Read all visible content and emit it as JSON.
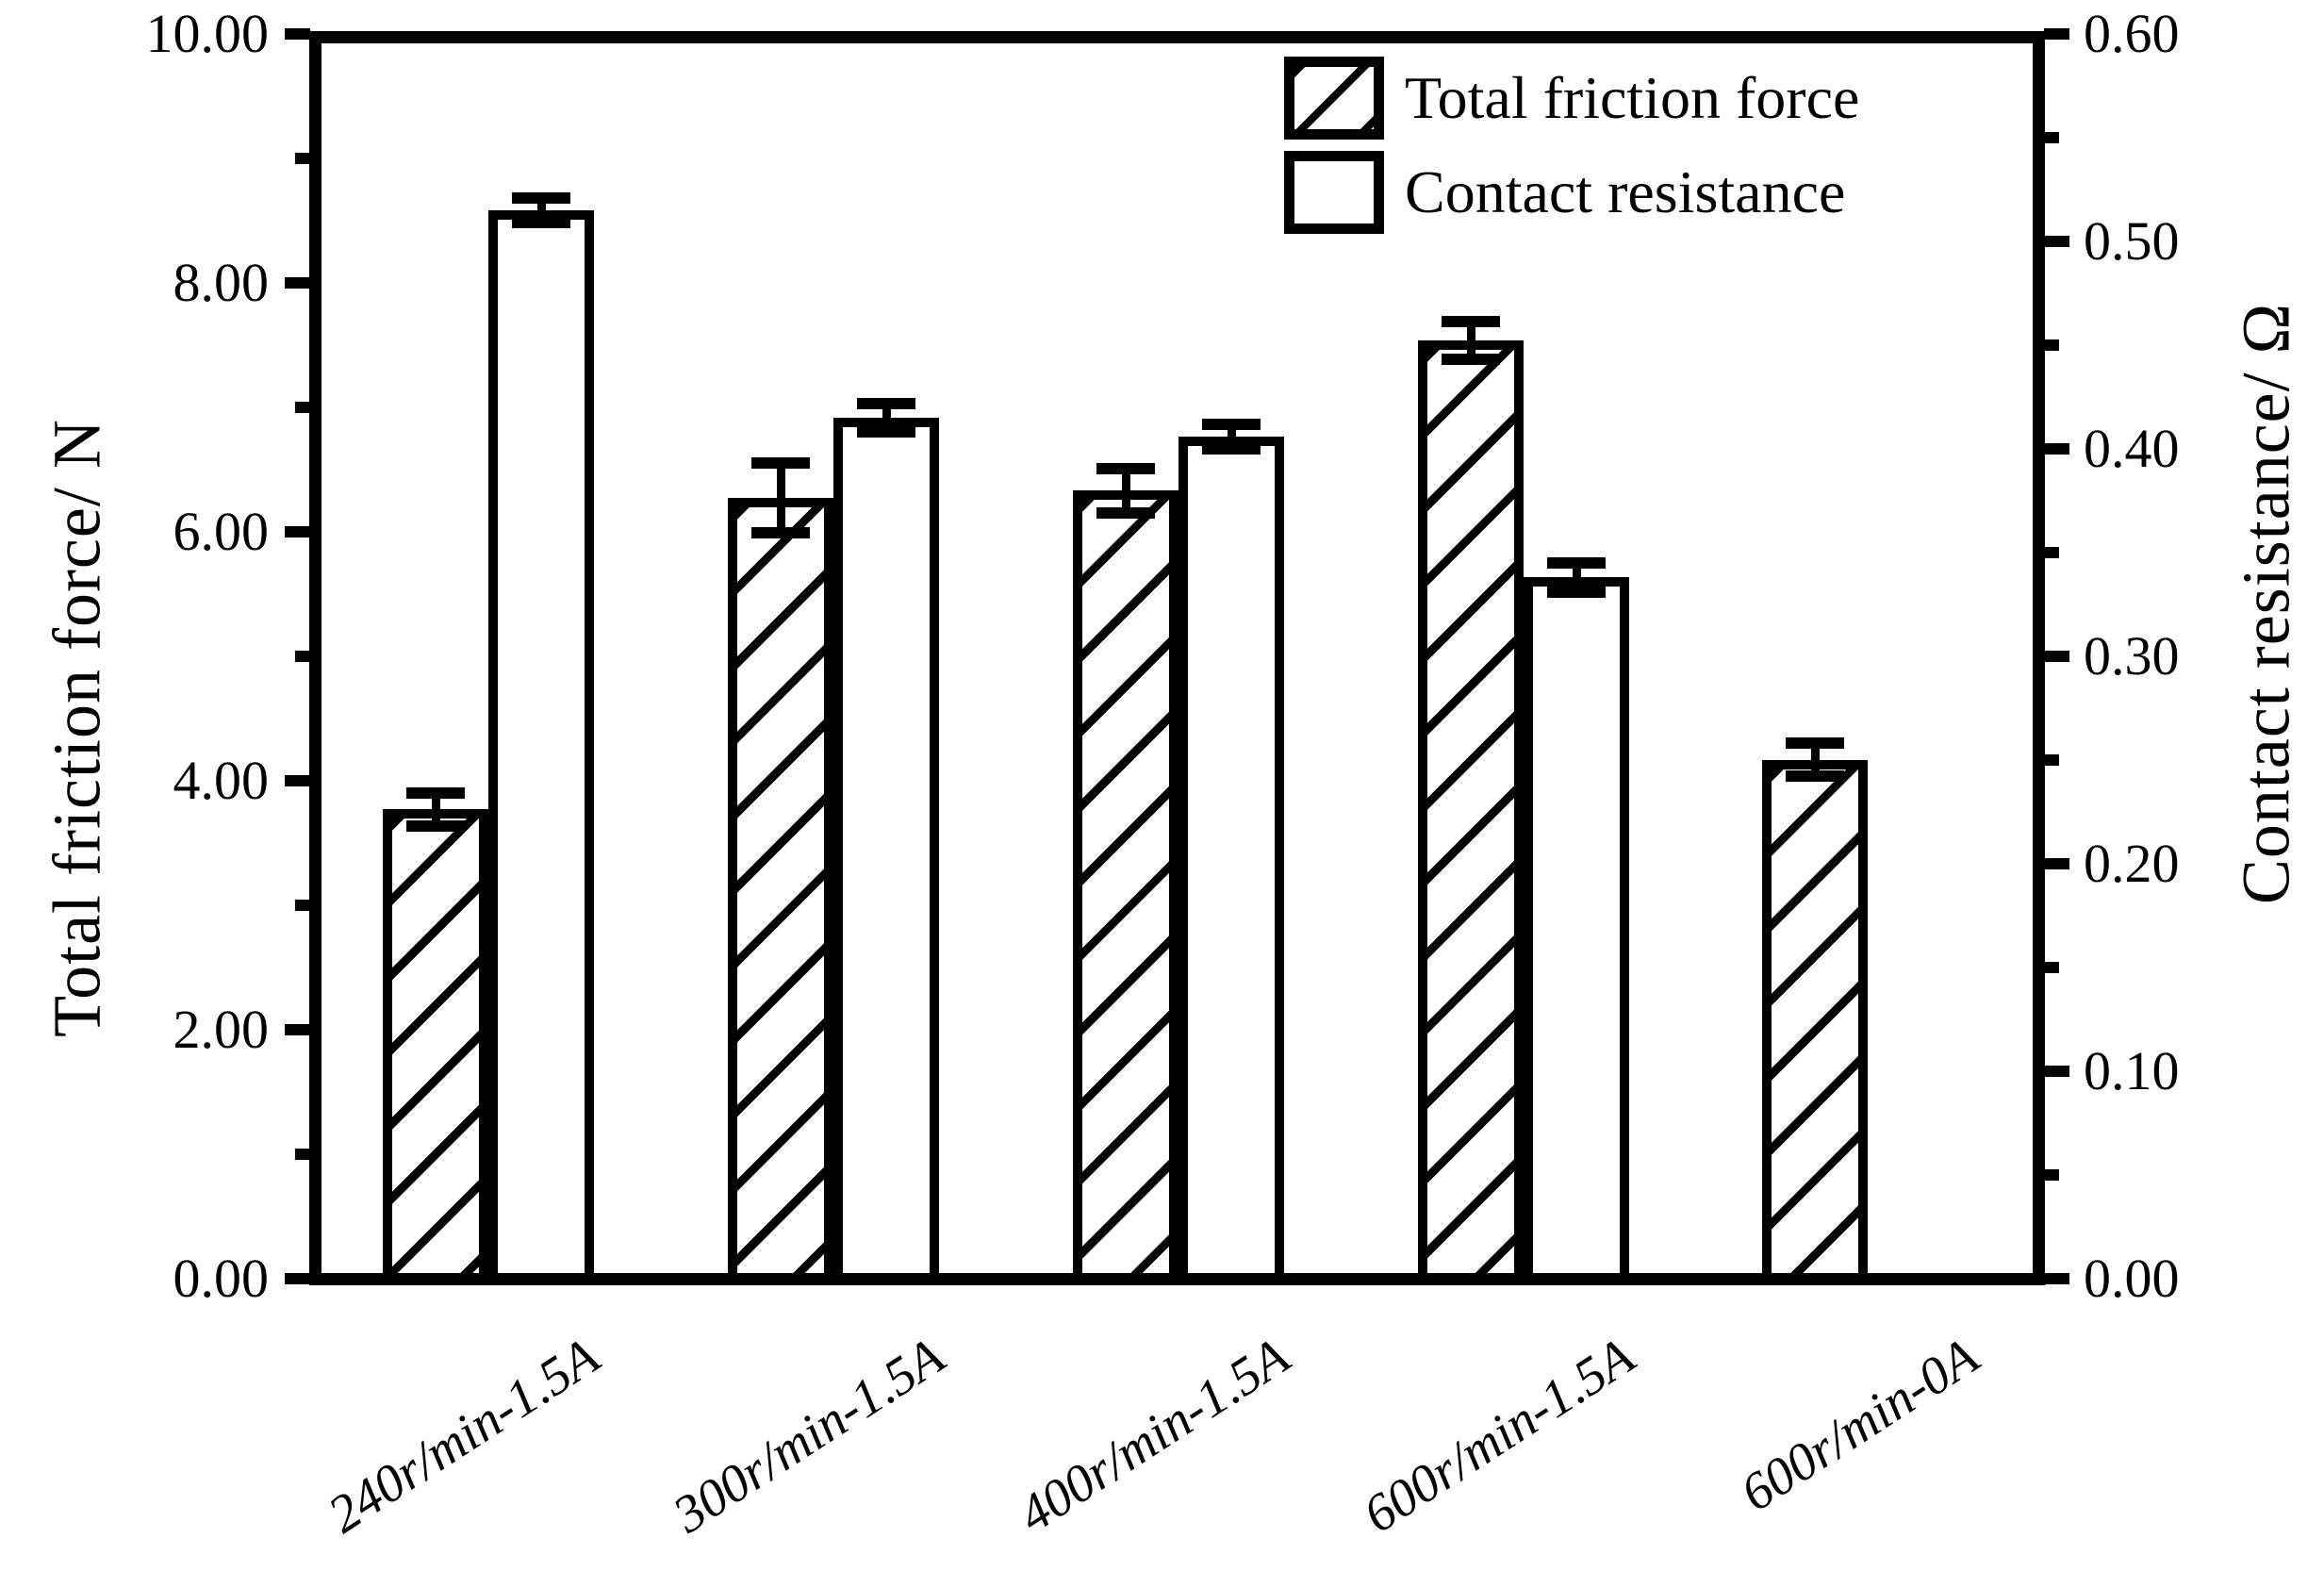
{
  "chart_data": {
    "type": "bar",
    "title": "",
    "categories": [
      "240r/min-1.5A",
      "300r/min-1.5A",
      "400r/min-1.5A",
      "600r/min-1.5A",
      "600r/min-0A"
    ],
    "series": [
      {
        "name": "Total friction force",
        "axis": "left",
        "style": "hatched",
        "values": [
          3.77,
          6.27,
          6.33,
          7.54,
          4.17
        ],
        "errors": [
          0.13,
          0.28,
          0.18,
          0.15,
          0.13
        ]
      },
      {
        "name": "Contact resistance",
        "axis": "right",
        "style": "open",
        "values": [
          0.515,
          0.415,
          0.406,
          0.338,
          null
        ],
        "errors": [
          0.006,
          0.007,
          0.006,
          0.007,
          null
        ]
      }
    ],
    "left_axis": {
      "label": "Total friction force/ N",
      "min": 0,
      "max": 10,
      "major_step": 2,
      "minor_step": 1,
      "tick_labels": [
        "0.00",
        "2.00",
        "4.00",
        "6.00",
        "8.00",
        "10.00"
      ]
    },
    "right_axis": {
      "label": "Contact resistance/ Ω",
      "min": 0,
      "max": 0.6,
      "major_step": 0.1,
      "minor_step": 0.05,
      "tick_labels": [
        "0.00",
        "0.10",
        "0.20",
        "0.30",
        "0.40",
        "0.50",
        "0.60"
      ]
    },
    "legend": {
      "position": "top-right",
      "items": [
        "Total friction force",
        "Contact resistance"
      ]
    },
    "grid": false,
    "colors": {
      "foreground": "#000000",
      "background": "#ffffff"
    }
  }
}
